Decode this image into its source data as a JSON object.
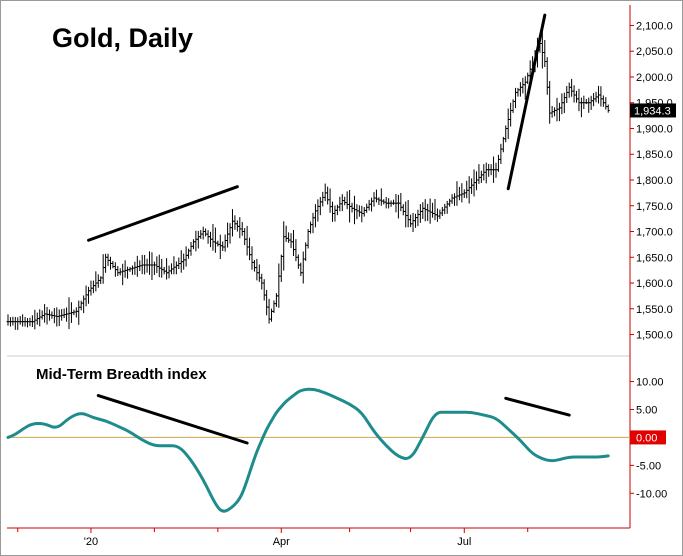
{
  "chart_data": [
    {
      "type": "ohlc",
      "title": "Gold, Daily",
      "last_value_label": "1,934.3",
      "ylim": [
        1470,
        2130
      ],
      "y_ticks": [
        1500,
        1550,
        1600,
        1650,
        1700,
        1750,
        1800,
        1850,
        1900,
        1950,
        2000,
        2050,
        2100
      ],
      "y_tick_labels": [
        "1,500.0",
        "1,550.0",
        "1,600.0",
        "1,650.0",
        "1,700.0",
        "1,750.0",
        "1,800.0",
        "1,850.0",
        "1,900.0",
        "1,950.0",
        "2,000.0",
        "2,050.0",
        "2,100.0"
      ],
      "x_ticks": [
        "'20",
        "Apr",
        "Jul"
      ],
      "grid": false,
      "close_keypoints": [
        [
          0,
          1525
        ],
        [
          10,
          1525
        ],
        [
          15,
          1540
        ],
        [
          20,
          1535
        ],
        [
          28,
          1545
        ],
        [
          33,
          1585
        ],
        [
          38,
          1610
        ],
        [
          40,
          1650
        ],
        [
          45,
          1620
        ],
        [
          55,
          1635
        ],
        [
          60,
          1635
        ],
        [
          65,
          1620
        ],
        [
          72,
          1645
        ],
        [
          76,
          1680
        ],
        [
          80,
          1700
        ],
        [
          84,
          1680
        ],
        [
          88,
          1670
        ],
        [
          92,
          1720
        ],
        [
          96,
          1700
        ],
        [
          100,
          1640
        ],
        [
          104,
          1600
        ],
        [
          107,
          1530
        ],
        [
          110,
          1575
        ],
        [
          113,
          1690
        ],
        [
          116,
          1680
        ],
        [
          120,
          1620
        ],
        [
          123,
          1700
        ],
        [
          126,
          1740
        ],
        [
          130,
          1775
        ],
        [
          133,
          1735
        ],
        [
          137,
          1760
        ],
        [
          141,
          1745
        ],
        [
          145,
          1735
        ],
        [
          150,
          1765
        ],
        [
          155,
          1755
        ],
        [
          160,
          1755
        ],
        [
          165,
          1715
        ],
        [
          170,
          1745
        ],
        [
          176,
          1730
        ],
        [
          182,
          1765
        ],
        [
          187,
          1775
        ],
        [
          192,
          1800
        ],
        [
          196,
          1820
        ],
        [
          200,
          1820
        ],
        [
          204,
          1900
        ],
        [
          208,
          1970
        ],
        [
          212,
          1990
        ],
        [
          216,
          2040
        ],
        [
          218,
          2065
        ],
        [
          220,
          2030
        ],
        [
          222,
          1930
        ],
        [
          226,
          1940
        ],
        [
          230,
          1980
        ],
        [
          234,
          1950
        ],
        [
          238,
          1950
        ],
        [
          242,
          1965
        ],
        [
          246,
          1935
        ]
      ],
      "trend_lines": [
        {
          "from": [
            33,
            1683
          ],
          "to": [
            94,
            1787
          ]
        },
        {
          "from": [
            205,
            1783
          ],
          "to": [
            220,
            2120
          ]
        }
      ]
    },
    {
      "type": "line",
      "title": "Mid-Term Breadth index",
      "series_color": "#1E8C8C",
      "zero_line_label": "0.00",
      "zero_line_color": "#C8A84B",
      "ylim": [
        -15.5,
        13.5
      ],
      "y_ticks": [
        10,
        5,
        0,
        -5,
        -10
      ],
      "y_tick_labels": [
        "10.00",
        "5.00",
        "",
        "-5.00",
        "-10.00"
      ],
      "grid": false,
      "x": [
        0,
        3,
        6,
        10,
        15,
        20,
        25,
        30,
        35,
        40,
        45,
        50,
        55,
        60,
        65,
        70,
        75,
        80,
        85,
        88,
        92,
        95,
        97,
        100,
        102,
        104,
        106,
        108,
        110,
        112,
        114,
        117,
        120,
        125,
        130,
        135,
        140,
        145,
        150,
        155,
        160,
        165,
        170,
        175,
        180,
        185,
        190,
        195,
        200,
        205,
        210,
        215,
        220,
        223,
        226,
        230,
        235,
        240,
        243,
        246
      ],
      "values": [
        0,
        0.5,
        1.5,
        2.5,
        2.5,
        1.5,
        3.5,
        4.5,
        3.5,
        3.0,
        2.0,
        1.0,
        -0.5,
        -1.5,
        -1.5,
        -1.5,
        -4.0,
        -7.5,
        -12.0,
        -13.5,
        -12.5,
        -11.0,
        -9.0,
        -5.0,
        -2.5,
        -0.5,
        1.5,
        3.0,
        4.5,
        5.5,
        6.5,
        7.5,
        8.5,
        8.7,
        8.0,
        7.0,
        6.0,
        4.5,
        1.0,
        -1.5,
        -3.5,
        -4.0,
        0.0,
        4.5,
        4.5,
        4.5,
        4.5,
        4.0,
        3.5,
        1.5,
        -0.5,
        -3.0,
        -4.0,
        -4.2,
        -4.0,
        -3.5,
        -3.5,
        -3.5,
        -3.5,
        -3.3
      ],
      "trend_lines": [
        {
          "from": [
            37,
            7.5
          ],
          "to": [
            98,
            -1.0
          ]
        },
        {
          "from": [
            204,
            7.0
          ],
          "to": [
            230,
            4.0
          ]
        }
      ]
    }
  ]
}
